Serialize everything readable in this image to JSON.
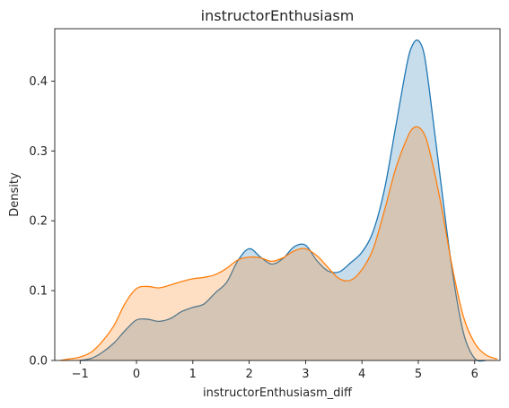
{
  "chart_data": {
    "type": "area",
    "title": "instructorEnthusiasm",
    "xlabel": "instructorEnthusiasm_diff",
    "ylabel": "Density",
    "xlim": [
      -1.45,
      6.45
    ],
    "ylim": [
      0,
      0.475
    ],
    "xticks": [
      -1,
      0,
      1,
      2,
      3,
      4,
      5,
      6
    ],
    "xtick_labels": [
      "−1",
      "0",
      "1",
      "2",
      "3",
      "4",
      "5",
      "6"
    ],
    "yticks": [
      0.0,
      0.1,
      0.2,
      0.3,
      0.4
    ],
    "ytick_labels": [
      "0.0",
      "0.1",
      "0.2",
      "0.3",
      "0.4"
    ],
    "grid": false,
    "legend": "none",
    "series": [
      {
        "color": "#1f77b4",
        "fill_opacity": 0.25,
        "x": [
          -1.0,
          -0.8,
          -0.6,
          -0.4,
          -0.2,
          0.0,
          0.2,
          0.4,
          0.6,
          0.8,
          1.0,
          1.2,
          1.4,
          1.6,
          1.8,
          2.0,
          2.2,
          2.4,
          2.6,
          2.8,
          3.0,
          3.2,
          3.4,
          3.6,
          3.8,
          4.0,
          4.2,
          4.4,
          4.6,
          4.8,
          4.9,
          5.0,
          5.1,
          5.2,
          5.4,
          5.6,
          5.8,
          6.0,
          6.2
        ],
        "y": [
          0.0,
          0.003,
          0.012,
          0.025,
          0.043,
          0.058,
          0.059,
          0.056,
          0.06,
          0.07,
          0.076,
          0.081,
          0.097,
          0.112,
          0.143,
          0.16,
          0.148,
          0.138,
          0.146,
          0.163,
          0.165,
          0.143,
          0.128,
          0.127,
          0.14,
          0.155,
          0.185,
          0.245,
          0.335,
          0.425,
          0.452,
          0.458,
          0.44,
          0.385,
          0.255,
          0.13,
          0.04,
          0.003,
          0.0
        ]
      },
      {
        "color": "#ff7f0e",
        "fill_opacity": 0.25,
        "x": [
          -1.35,
          -1.2,
          -1.0,
          -0.8,
          -0.6,
          -0.4,
          -0.2,
          0.0,
          0.2,
          0.4,
          0.6,
          0.8,
          1.0,
          1.2,
          1.4,
          1.6,
          1.8,
          2.0,
          2.2,
          2.4,
          2.6,
          2.8,
          3.0,
          3.2,
          3.4,
          3.6,
          3.8,
          4.0,
          4.2,
          4.4,
          4.6,
          4.8,
          4.9,
          5.0,
          5.1,
          5.2,
          5.4,
          5.6,
          5.8,
          6.0,
          6.2,
          6.4
        ],
        "y": [
          0.0,
          0.002,
          0.005,
          0.012,
          0.028,
          0.05,
          0.082,
          0.103,
          0.106,
          0.104,
          0.108,
          0.113,
          0.117,
          0.119,
          0.123,
          0.132,
          0.144,
          0.148,
          0.147,
          0.142,
          0.147,
          0.157,
          0.16,
          0.15,
          0.133,
          0.117,
          0.115,
          0.13,
          0.16,
          0.215,
          0.275,
          0.318,
          0.332,
          0.334,
          0.325,
          0.3,
          0.225,
          0.135,
          0.063,
          0.025,
          0.008,
          0.002
        ]
      }
    ]
  }
}
